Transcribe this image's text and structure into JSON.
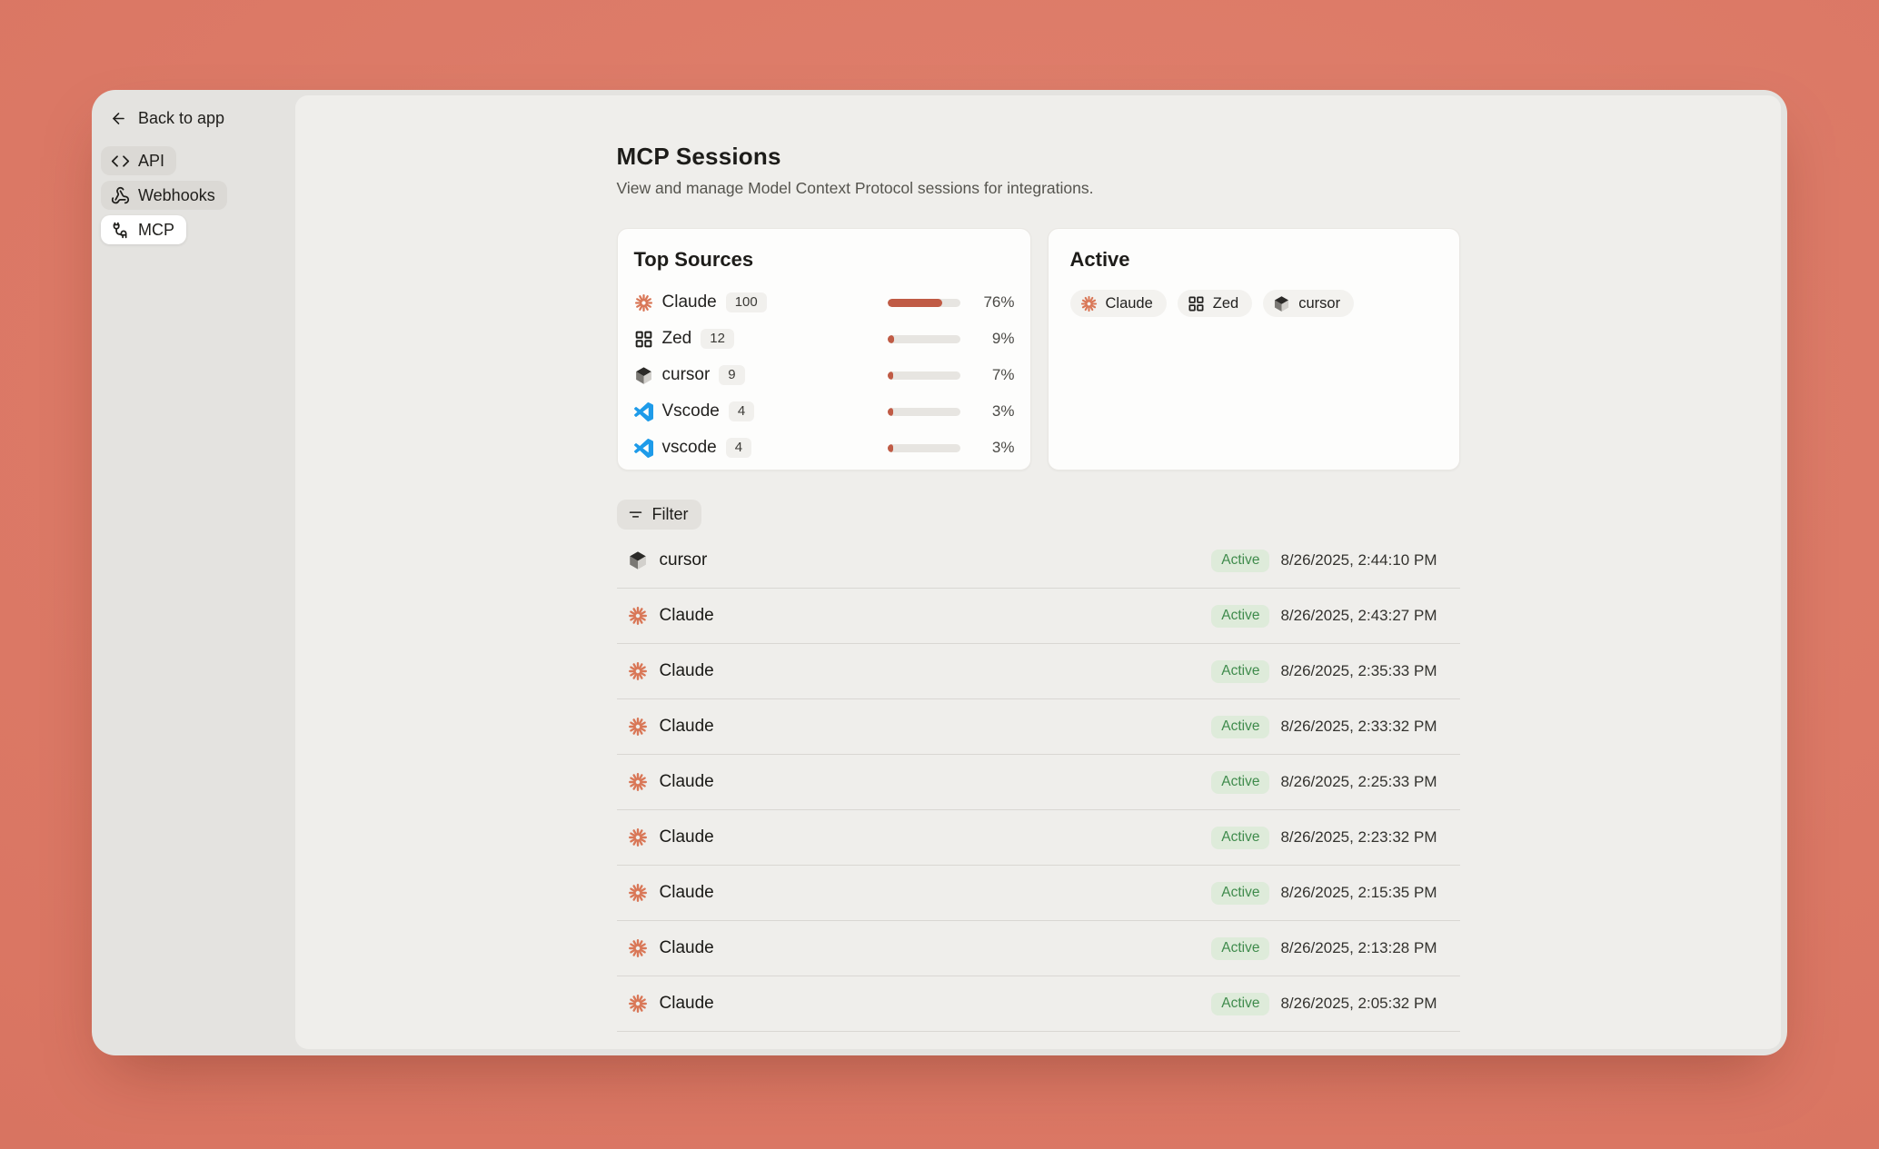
{
  "sidebar": {
    "back_label": "Back to app",
    "items": [
      {
        "label": "API",
        "icon": "code",
        "active": false
      },
      {
        "label": "Webhooks",
        "icon": "webhook",
        "active": false
      },
      {
        "label": "MCP",
        "icon": "cable",
        "active": true
      }
    ]
  },
  "header": {
    "title": "MCP Sessions",
    "subtitle": "View and manage Model Context Protocol sessions for integrations."
  },
  "top_sources": {
    "title": "Top Sources",
    "rows": [
      {
        "name": "Claude",
        "icon": "claude",
        "count": "100",
        "pct": 76,
        "percent": "76%"
      },
      {
        "name": "Zed",
        "icon": "zed",
        "count": "12",
        "pct": 9,
        "percent": "9%"
      },
      {
        "name": "cursor",
        "icon": "cursor",
        "count": "9",
        "pct": 7,
        "percent": "7%"
      },
      {
        "name": "Vscode",
        "icon": "vscode",
        "count": "4",
        "pct": 3,
        "percent": "3%"
      },
      {
        "name": "vscode",
        "icon": "vscode",
        "count": "4",
        "pct": 3,
        "percent": "3%"
      }
    ]
  },
  "active_card": {
    "title": "Active",
    "chips": [
      {
        "label": "Claude",
        "icon": "claude"
      },
      {
        "label": "Zed",
        "icon": "zed"
      },
      {
        "label": "cursor",
        "icon": "cursor"
      }
    ]
  },
  "filter": {
    "label": "Filter"
  },
  "sessions": [
    {
      "name": "cursor",
      "icon": "cursor",
      "status": "Active",
      "timestamp": "8/26/2025, 2:44:10 PM"
    },
    {
      "name": "Claude",
      "icon": "claude",
      "status": "Active",
      "timestamp": "8/26/2025, 2:43:27 PM"
    },
    {
      "name": "Claude",
      "icon": "claude",
      "status": "Active",
      "timestamp": "8/26/2025, 2:35:33 PM"
    },
    {
      "name": "Claude",
      "icon": "claude",
      "status": "Active",
      "timestamp": "8/26/2025, 2:33:32 PM"
    },
    {
      "name": "Claude",
      "icon": "claude",
      "status": "Active",
      "timestamp": "8/26/2025, 2:25:33 PM"
    },
    {
      "name": "Claude",
      "icon": "claude",
      "status": "Active",
      "timestamp": "8/26/2025, 2:23:32 PM"
    },
    {
      "name": "Claude",
      "icon": "claude",
      "status": "Active",
      "timestamp": "8/26/2025, 2:15:35 PM"
    },
    {
      "name": "Claude",
      "icon": "claude",
      "status": "Active",
      "timestamp": "8/26/2025, 2:13:28 PM"
    },
    {
      "name": "Claude",
      "icon": "claude",
      "status": "Active",
      "timestamp": "8/26/2025, 2:05:32 PM"
    }
  ],
  "colors": {
    "background": "#da7663",
    "accent_claude": "#d97757",
    "progress_fill": "#c05b45",
    "status_active_bg": "#deebda",
    "status_active_text": "#3f8b4c",
    "vscode_blue": "#1e9be9"
  }
}
